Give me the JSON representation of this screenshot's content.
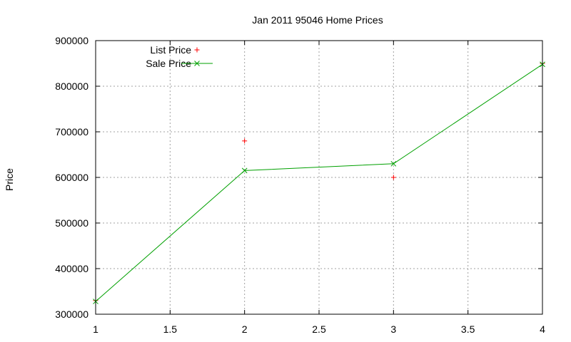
{
  "chart_data": {
    "type": "line",
    "title": "Jan 2011 95046 Home Prices",
    "xlabel": "",
    "ylabel": "Price",
    "xlim": [
      1,
      4
    ],
    "ylim": [
      300000,
      900000
    ],
    "xticks": [
      1,
      1.5,
      2,
      2.5,
      3,
      3.5,
      4
    ],
    "yticks": [
      300000,
      400000,
      500000,
      600000,
      700000,
      800000,
      900000
    ],
    "grid": true,
    "legend_position": "top-left",
    "series": [
      {
        "name": "List Price",
        "style": "points",
        "marker": "plus",
        "color": "#ff0000",
        "points": [
          {
            "x": 1,
            "y": 330000
          },
          {
            "x": 2,
            "y": 680000
          },
          {
            "x": 3,
            "y": 600000
          },
          {
            "x": 4,
            "y": 850000
          }
        ]
      },
      {
        "name": "Sale Price",
        "style": "linespoints",
        "marker": "cross",
        "color": "#00a000",
        "points": [
          {
            "x": 1,
            "y": 328000
          },
          {
            "x": 2,
            "y": 615000
          },
          {
            "x": 3,
            "y": 630000
          },
          {
            "x": 4,
            "y": 848000
          }
        ]
      }
    ]
  }
}
